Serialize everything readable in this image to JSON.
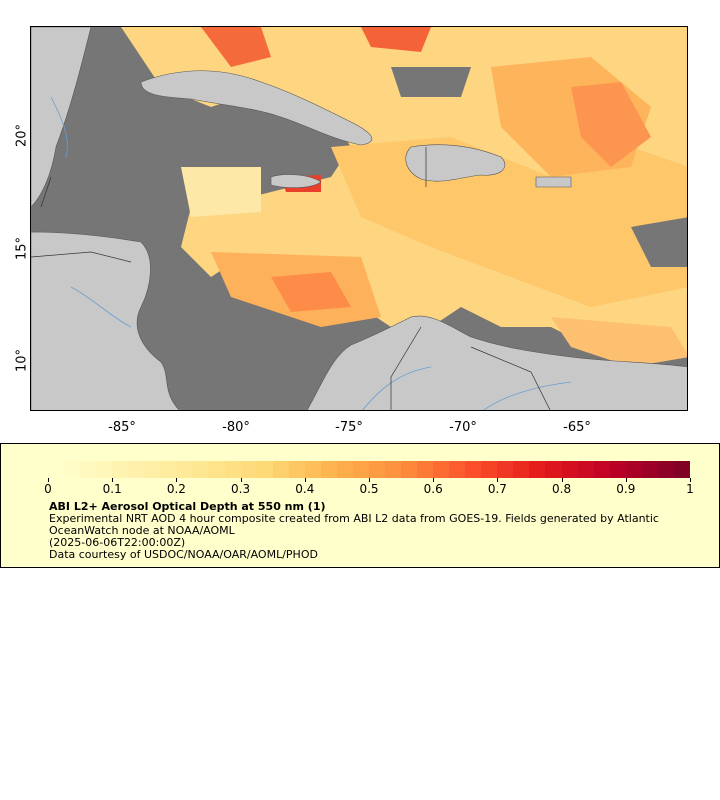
{
  "map": {
    "x_ticks": [
      "-85°",
      "-80°",
      "-75°",
      "-70°",
      "-65°"
    ],
    "y_ticks": [
      "20°",
      "15°",
      "10°"
    ],
    "colors": {
      "ocean_nodata": "#767676",
      "land": "#c8c8c8",
      "borders": "#333333",
      "rivers": "#6a9ed0"
    }
  },
  "legend": {
    "ticks": [
      "0",
      "0.1",
      "0.2",
      "0.3",
      "0.4",
      "0.5",
      "0.6",
      "0.7",
      "0.8",
      "0.9",
      "1"
    ],
    "colorscale": [
      "#ffffcc",
      "#fff2b0",
      "#fee895",
      "#fed976",
      "#feb24c",
      "#fd8d3c",
      "#fc4e2a",
      "#e31a1c",
      "#bd0026",
      "#800026"
    ],
    "title": "ABI L2+ Aerosol Optical Depth at 550 nm (1)",
    "description": "Experimental NRT AOD 4 hour composite created from ABI L2 data from GOES-19. Fields generated by Atlantic OceanWatch node at NOAA/AOML",
    "timestamp": "(2025-06-06T22:00:00Z)",
    "credit": "Data courtesy of USDOC/NOAA/OAR/AOML/PHOD"
  }
}
